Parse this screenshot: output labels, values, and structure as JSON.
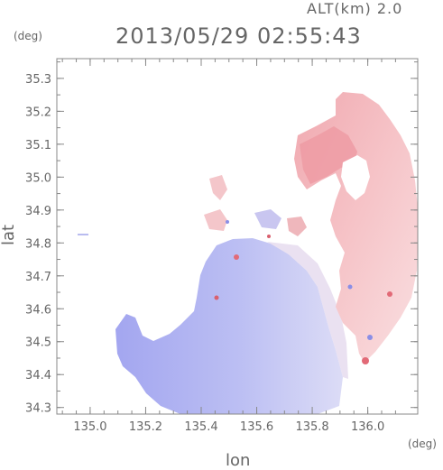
{
  "header": {
    "altitude_label": "ALT(km) 2.0",
    "timestamp": "2013/05/29 02:55:43"
  },
  "axes": {
    "y_unit": "(deg)",
    "x_unit": "(deg)",
    "y_label": "lat",
    "x_label": "lon",
    "x_ticks": [
      "135.0",
      "135.2",
      "135.4",
      "135.6",
      "135.8",
      "136.0"
    ],
    "y_ticks": [
      "35.3",
      "35.2",
      "35.1",
      "35.0",
      "34.9",
      "34.8",
      "34.7",
      "34.6",
      "34.5",
      "34.4",
      "34.3"
    ],
    "x_range": [
      134.88,
      136.18
    ],
    "y_range": [
      34.28,
      35.36
    ]
  },
  "colors": {
    "negative": "#a9acf0",
    "positive": "#f2b3b8",
    "frame": "#888888"
  }
}
